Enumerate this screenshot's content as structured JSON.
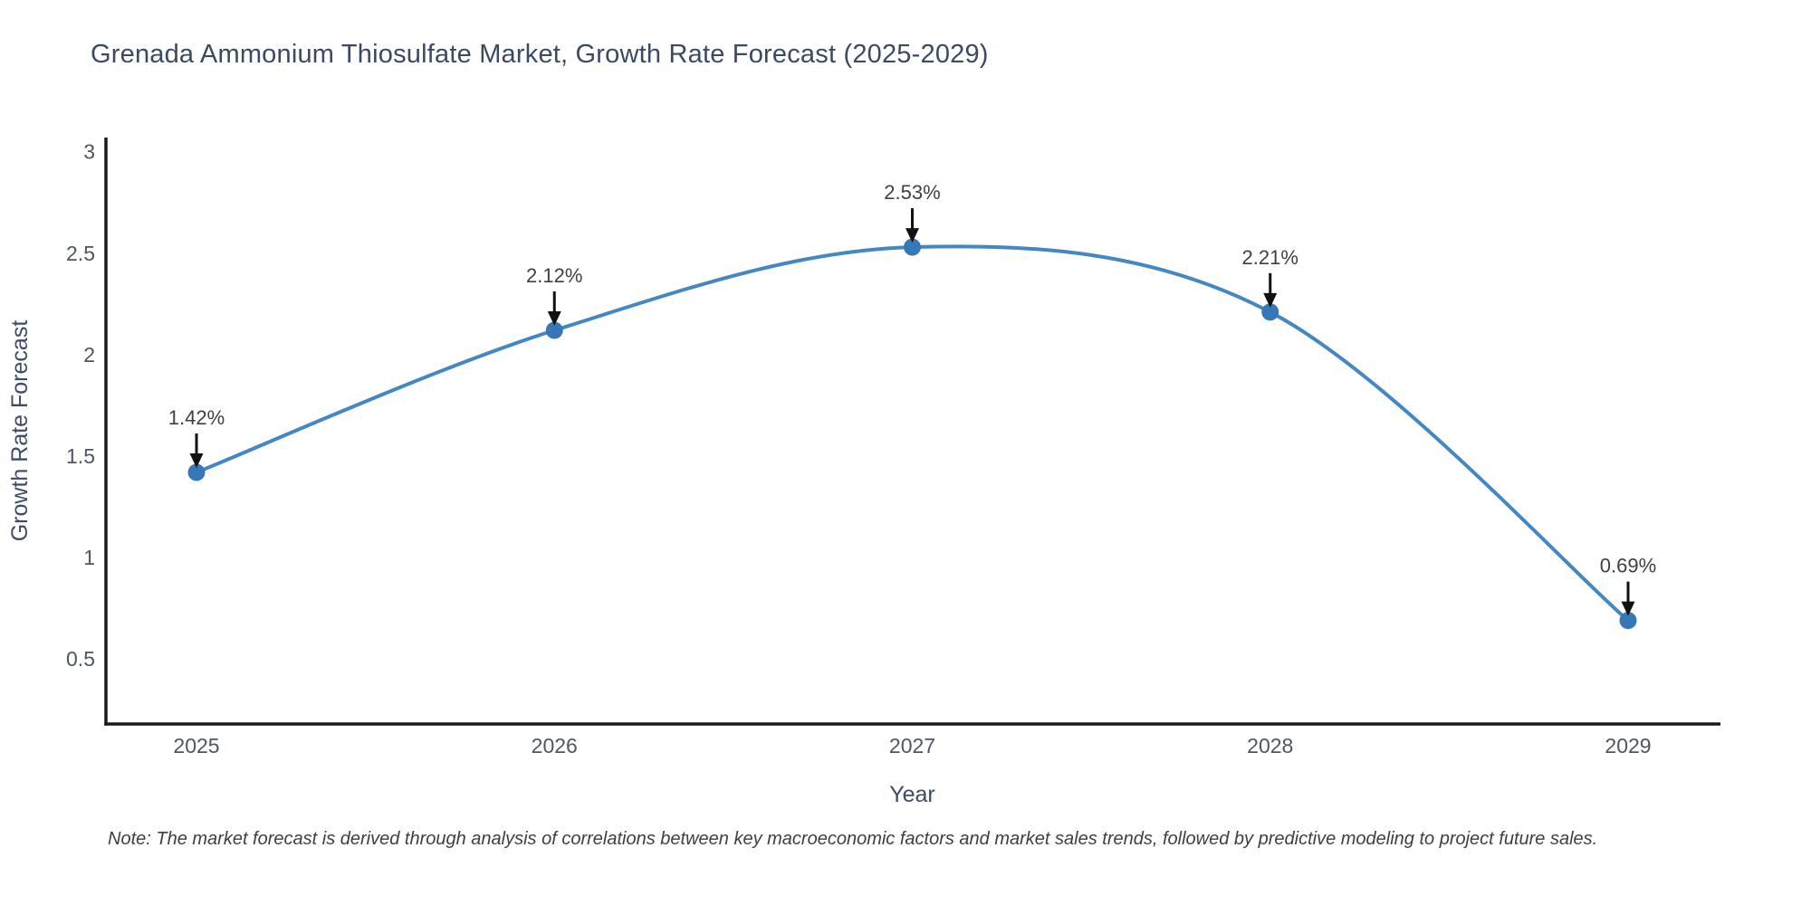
{
  "title": {
    "text": "Grenada Ammonium Thiosulfate Market, Growth Rate Forecast (2025-2029)",
    "color": "#3b4a63"
  },
  "note": {
    "text": "Note: The market forecast is derived through analysis of correlations between key macroeconomic factors and market sales trends, followed by predictive modeling to project future sales."
  },
  "chart_data": {
    "type": "line",
    "line_shape": "spline",
    "title": "Grenada Ammonium Thiosulfate Market, Growth Rate Forecast (2025-2029)",
    "xlabel": "Year",
    "ylabel": "Growth Rate Forecast",
    "categories": [
      "2025",
      "2026",
      "2027",
      "2028",
      "2029"
    ],
    "series": [
      {
        "name": "Growth Rate Forecast",
        "values": [
          1.42,
          2.12,
          2.53,
          2.21,
          0.69
        ]
      }
    ],
    "point_labels": [
      "1.42%",
      "2.12%",
      "2.53%",
      "2.21%",
      "0.69%"
    ],
    "yticks": [
      0.5,
      1,
      1.5,
      2,
      2.5,
      3
    ],
    "ytick_labels": [
      "0.5",
      "1",
      "1.5",
      "2",
      "2.5",
      "3"
    ],
    "ylim": [
      0.18,
      3.07
    ],
    "grid": false,
    "legend": "none",
    "colors": {
      "line": "#4587c3",
      "marker": "#3678b5",
      "axis": "#1a1a1a",
      "tick_text": "#4d5665",
      "axis_title_text": "#3d4c66",
      "annotation_text": "#404040",
      "arrow": "#111111"
    }
  }
}
